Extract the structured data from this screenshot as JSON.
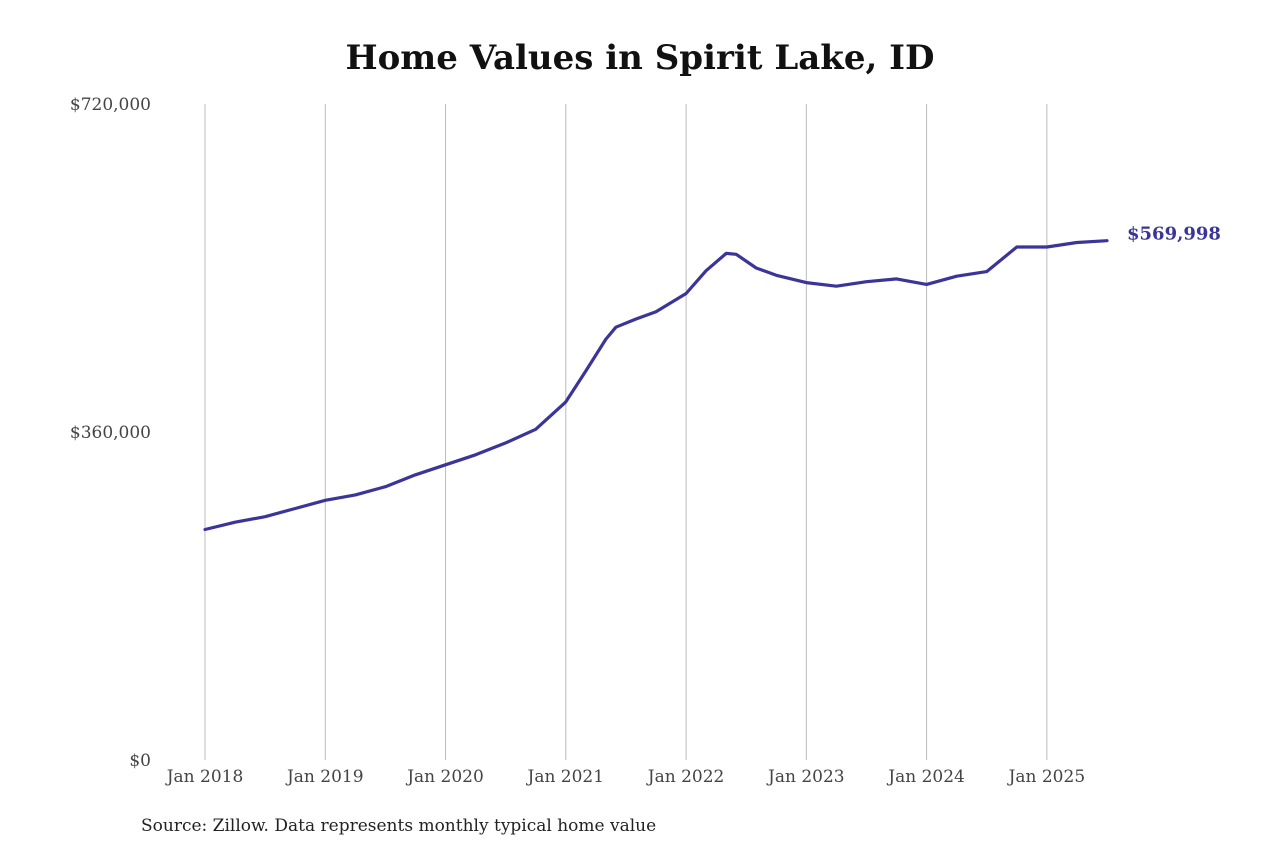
{
  "chart_data": {
    "type": "line",
    "title": "Home Values in Spirit Lake, ID",
    "xlabel": "",
    "ylabel": "",
    "ylim": [
      0,
      720000
    ],
    "xlim": [
      "2018-01",
      "2025-07"
    ],
    "grid": "vertical",
    "legend": "none",
    "colors": {
      "line": "#3b3599",
      "grid": "#bbbbbb"
    },
    "y_ticks": [
      {
        "value": 0,
        "label": "$0"
      },
      {
        "value": 360000,
        "label": "$360,000"
      },
      {
        "value": 720000,
        "label": "$720,000"
      }
    ],
    "x_ticks": [
      {
        "value": "2018-01",
        "label": "Jan 2018"
      },
      {
        "value": "2019-01",
        "label": "Jan 2019"
      },
      {
        "value": "2020-01",
        "label": "Jan 2020"
      },
      {
        "value": "2021-01",
        "label": "Jan 2021"
      },
      {
        "value": "2022-01",
        "label": "Jan 2022"
      },
      {
        "value": "2023-01",
        "label": "Jan 2023"
      },
      {
        "value": "2024-01",
        "label": "Jan 2024"
      },
      {
        "value": "2025-01",
        "label": "Jan 2025"
      }
    ],
    "series": [
      {
        "name": "",
        "points": [
          [
            "2018-01",
            253000
          ],
          [
            "2018-04",
            261000
          ],
          [
            "2018-07",
            267000
          ],
          [
            "2018-10",
            276000
          ],
          [
            "2019-01",
            285000
          ],
          [
            "2019-04",
            291000
          ],
          [
            "2019-07",
            300000
          ],
          [
            "2019-10",
            313000
          ],
          [
            "2020-01",
            324000
          ],
          [
            "2020-04",
            335000
          ],
          [
            "2020-07",
            348000
          ],
          [
            "2020-10",
            363000
          ],
          [
            "2021-01",
            393000
          ],
          [
            "2021-03",
            427000
          ],
          [
            "2021-05",
            462000
          ],
          [
            "2021-06",
            475000
          ],
          [
            "2021-08",
            484000
          ],
          [
            "2021-10",
            492000
          ],
          [
            "2022-01",
            512000
          ],
          [
            "2022-03",
            537000
          ],
          [
            "2022-05",
            556000
          ],
          [
            "2022-06",
            555000
          ],
          [
            "2022-08",
            540000
          ],
          [
            "2022-10",
            532000
          ],
          [
            "2023-01",
            524000
          ],
          [
            "2023-04",
            520000
          ],
          [
            "2023-07",
            525000
          ],
          [
            "2023-10",
            528000
          ],
          [
            "2024-01",
            522000
          ],
          [
            "2024-04",
            531000
          ],
          [
            "2024-07",
            536000
          ],
          [
            "2024-10",
            563000
          ],
          [
            "2025-01",
            563000
          ],
          [
            "2025-04",
            568000
          ],
          [
            "2025-07",
            569998
          ]
        ]
      }
    ],
    "end_label": "$569,998"
  },
  "source": "Source: Zillow. Data represents monthly typical home value"
}
